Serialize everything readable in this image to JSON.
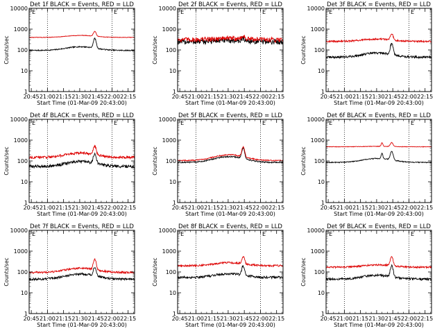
{
  "figure": {
    "x_tick_labels": [
      "20:45",
      "21:00",
      "21:15",
      "21:30",
      "21:45",
      "22:00",
      "22:15"
    ],
    "y_tick_labels": [
      "1",
      "10",
      "100",
      "1000",
      "10000"
    ],
    "xlabel": "Start Time (01-Mar-09 20:43:00)",
    "ylabel": "Counts/sec",
    "marker_E": "E",
    "colors": {
      "events": "#000000",
      "lld": "#dd0000",
      "frame": "#000000"
    }
  },
  "chart_data": [
    {
      "type": "line",
      "title": "Det 1f BLACK = Events, RED = LLD",
      "xlabel": "Start Time (01-Mar-09 20:43:00)",
      "ylabel": "Counts/sec",
      "x_range_minutes_after_start": [
        0,
        98
      ],
      "y_scale": "log",
      "ylim": [
        1,
        10000
      ],
      "vertical_dotted_lines_at": [
        "21:00",
        "22:00"
      ],
      "series": [
        {
          "name": "BLACK = Events",
          "color": "#000000",
          "baseline": 95,
          "hump": 1.5,
          "peak": 2.9,
          "noise": 0.06
        },
        {
          "name": "RED = LLD",
          "color": "#dd0000",
          "baseline": 400,
          "hump": 1.25,
          "peak": 1.7,
          "noise": 0.03
        }
      ]
    },
    {
      "type": "line",
      "title": "Det 2f BLACK = Events, RED = LLD",
      "xlabel": "Start Time (01-Mar-09 20:43:00)",
      "ylabel": "Counts/sec",
      "x_range_minutes_after_start": [
        0,
        98
      ],
      "y_scale": "log",
      "ylim": [
        1,
        10000
      ],
      "vertical_dotted_lines_at": [
        "21:00",
        "22:00"
      ],
      "series": [
        {
          "name": "BLACK = Events",
          "color": "#000000",
          "baseline": 250,
          "hump": 1.15,
          "peak": 1.35,
          "noise": 0.28
        },
        {
          "name": "RED = LLD",
          "color": "#dd0000",
          "baseline": 320,
          "hump": 1.15,
          "peak": 1.4,
          "noise": 0.26
        }
      ]
    },
    {
      "type": "line",
      "title": "Det 3f BLACK = Events, RED = LLD",
      "xlabel": "Start Time (01-Mar-09 20:43:00)",
      "ylabel": "Counts/sec",
      "x_range_minutes_after_start": [
        0,
        98
      ],
      "y_scale": "log",
      "ylim": [
        1,
        10000
      ],
      "vertical_dotted_lines_at": [
        "21:00",
        "22:00"
      ],
      "series": [
        {
          "name": "BLACK = Events",
          "color": "#000000",
          "baseline": 45,
          "hump": 1.6,
          "peak": 3.3,
          "noise": 0.12
        },
        {
          "name": "RED = LLD",
          "color": "#dd0000",
          "baseline": 260,
          "hump": 1.3,
          "peak": 2.0,
          "noise": 0.09
        }
      ]
    },
    {
      "type": "line",
      "title": "Det 4f BLACK = Events, RED = LLD",
      "xlabel": "Start Time (01-Mar-09 20:43:00)",
      "ylabel": "Counts/sec",
      "x_range_minutes_after_start": [
        0,
        98
      ],
      "y_scale": "log",
      "ylim": [
        1,
        10000
      ],
      "vertical_dotted_lines_at": [
        "21:00",
        "22:00"
      ],
      "series": [
        {
          "name": "BLACK = Events",
          "color": "#000000",
          "baseline": 55,
          "hump": 1.7,
          "peak": 3.0,
          "noise": 0.16
        },
        {
          "name": "RED = LLD",
          "color": "#dd0000",
          "baseline": 150,
          "hump": 1.6,
          "peak": 2.6,
          "noise": 0.13
        }
      ]
    },
    {
      "type": "line",
      "title": "Det 5f BLACK = Events, RED = LLD",
      "xlabel": "Start Time (01-Mar-09 20:43:00)",
      "ylabel": "Counts/sec",
      "x_range_minutes_after_start": [
        0,
        98
      ],
      "y_scale": "log",
      "ylim": [
        1,
        10000
      ],
      "vertical_dotted_lines_at": [
        "21:00",
        "22:00"
      ],
      "series": [
        {
          "name": "BLACK = Events",
          "color": "#000000",
          "baseline": 85,
          "hump": 1.9,
          "peak": 3.2,
          "noise": 0.07
        },
        {
          "name": "RED = LLD",
          "color": "#dd0000",
          "baseline": 105,
          "hump": 1.9,
          "peak": 2.9,
          "noise": 0.06
        }
      ]
    },
    {
      "type": "line",
      "title": "Det 6f BLACK = Events, RED = LLD",
      "xlabel": "Start Time (01-Mar-09 20:43:00)",
      "ylabel": "Counts/sec",
      "x_range_minutes_after_start": [
        0,
        98
      ],
      "y_scale": "log",
      "ylim": [
        1,
        10000
      ],
      "vertical_dotted_lines_at": [
        "21:00",
        "22:00"
      ],
      "series": [
        {
          "name": "BLACK = Events",
          "color": "#000000",
          "baseline": 85,
          "hump": 1.55,
          "peak": 2.6,
          "noise": 0.05,
          "extra_spike": 1.8
        },
        {
          "name": "RED = LLD",
          "color": "#dd0000",
          "baseline": 480,
          "hump": 1.05,
          "peak": 1.55,
          "noise": 0.03,
          "extra_spike": 1.5
        }
      ]
    },
    {
      "type": "line",
      "title": "Det 7f BLACK = Events, RED = LLD",
      "xlabel": "Start Time (01-Mar-09 20:43:00)",
      "ylabel": "Counts/sec",
      "x_range_minutes_after_start": [
        0,
        98
      ],
      "y_scale": "log",
      "ylim": [
        1,
        10000
      ],
      "vertical_dotted_lines_at": [
        "21:00",
        "22:00"
      ],
      "series": [
        {
          "name": "BLACK = Events",
          "color": "#000000",
          "baseline": 45,
          "hump": 1.8,
          "peak": 2.6,
          "noise": 0.12
        },
        {
          "name": "RED = LLD",
          "color": "#dd0000",
          "baseline": 95,
          "hump": 1.6,
          "peak": 3.2,
          "noise": 0.1
        }
      ]
    },
    {
      "type": "line",
      "title": "Det 8f BLACK = Events, RED = LLD",
      "xlabel": "Start Time (01-Mar-09 20:43:00)",
      "ylabel": "Counts/sec",
      "x_range_minutes_after_start": [
        0,
        98
      ],
      "y_scale": "log",
      "ylim": [
        1,
        10000
      ],
      "vertical_dotted_lines_at": [
        "21:00",
        "22:00"
      ],
      "series": [
        {
          "name": "BLACK = Events",
          "color": "#000000",
          "baseline": 55,
          "hump": 1.5,
          "peak": 2.8,
          "noise": 0.13
        },
        {
          "name": "RED = LLD",
          "color": "#dd0000",
          "baseline": 200,
          "hump": 1.4,
          "peak": 2.2,
          "noise": 0.1
        }
      ]
    },
    {
      "type": "line",
      "title": "Det 9f BLACK = Events, RED = LLD",
      "xlabel": "Start Time (01-Mar-09 20:43:00)",
      "ylabel": "Counts/sec",
      "x_range_minutes_after_start": [
        0,
        98
      ],
      "y_scale": "log",
      "ylim": [
        1,
        10000
      ],
      "vertical_dotted_lines_at": [
        "21:00",
        "22:00"
      ],
      "series": [
        {
          "name": "BLACK = Events",
          "color": "#000000",
          "baseline": 45,
          "hump": 1.55,
          "peak": 3.3,
          "noise": 0.13
        },
        {
          "name": "RED = LLD",
          "color": "#dd0000",
          "baseline": 170,
          "hump": 1.3,
          "peak": 2.7,
          "noise": 0.09
        }
      ]
    }
  ]
}
